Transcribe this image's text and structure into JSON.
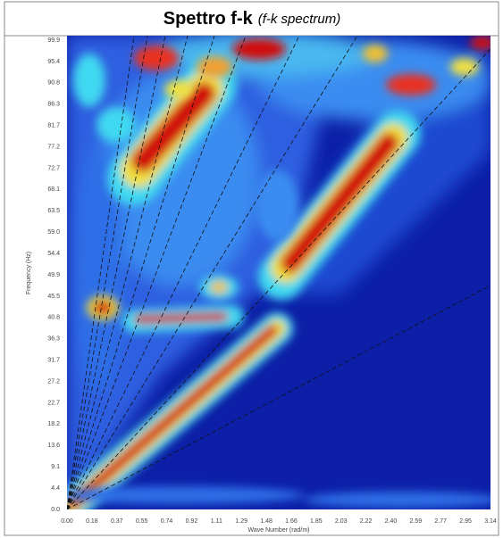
{
  "header": {
    "title": "Spettro f-k",
    "subtitle": "(f-k spectrum)"
  },
  "plot": {
    "y_label": "Frequency (Hz)",
    "x_label": "Wave Number (rad/m)",
    "y_ticks": [
      "0.0",
      "4.4",
      "9.1",
      "13.6",
      "18.2",
      "22.7",
      "27.2",
      "31.7",
      "36.3",
      "40.8",
      "45.5",
      "49.9",
      "54.4",
      "59.0",
      "63.5",
      "68.1",
      "72.7",
      "77.2",
      "81.7",
      "86.3",
      "90.8",
      "95.4",
      "99.9"
    ],
    "x_ticks": [
      "0.00",
      "0.18",
      "0.37",
      "0.55",
      "0.74",
      "0.92",
      "1.11",
      "1.29",
      "1.48",
      "1.66",
      "1.85",
      "2.03",
      "2.22",
      "2.40",
      "2.59",
      "2.77",
      "2.95",
      "3.14"
    ]
  }
}
